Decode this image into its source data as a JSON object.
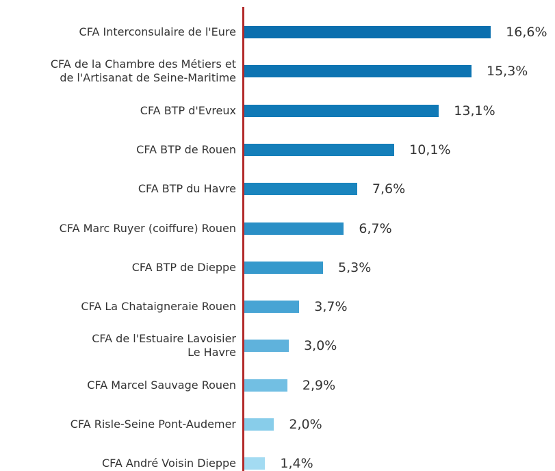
{
  "chart_data": {
    "type": "bar",
    "orientation": "horizontal",
    "categories": [
      "CFA Interconsulaire de l'Eure",
      "CFA de la Chambre des Métiers et\nde l'Artisanat de Seine-Maritime",
      "CFA BTP d'Evreux",
      "CFA BTP de Rouen",
      "CFA BTP du Havre",
      "CFA Marc Ruyer (coiffure) Rouen",
      "CFA BTP de Dieppe",
      "CFA La Chataigneraie Rouen",
      "CFA de l'Estuaire Lavoisier\nLe Havre",
      "CFA Marcel Sauvage Rouen",
      "CFA Risle-Seine Pont-Audemer",
      "CFA André Voisin Dieppe"
    ],
    "values": [
      16.6,
      15.3,
      13.1,
      10.1,
      7.6,
      6.7,
      5.3,
      3.7,
      3.0,
      2.9,
      2.0,
      1.4
    ],
    "value_labels": [
      "16,6%",
      "15,3%",
      "13,1%",
      "10,1%",
      "7,6%",
      "6,7%",
      "5,3%",
      "3,7%",
      "3,0%",
      "2,9%",
      "2,0%",
      "1,4%"
    ],
    "colors": [
      "#0b6fae",
      "#0d74b2",
      "#1079b6",
      "#157fba",
      "#1a85be",
      "#2a8fc6",
      "#3699cc",
      "#47a4d4",
      "#5fb2dc",
      "#72bfe3",
      "#88cdea",
      "#a3dbf2"
    ],
    "axis_color": "#b22a2a",
    "xlim": [
      0,
      20
    ]
  }
}
